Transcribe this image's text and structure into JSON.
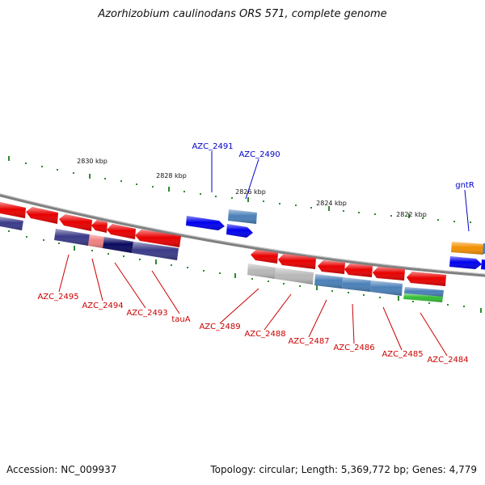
{
  "title": "Azorhizobium caulinodans ORS 571, complete genome",
  "footer": {
    "accession": "Accession: NC_009937",
    "summary": "Topology: circular; Length: 5,369,772 bp; Genes: 4,779"
  },
  "colors": {
    "forward_label": "#0000cc",
    "reverse_label": "#cc0000",
    "backbone": "#8a8a8a",
    "ticks": "#2e8b2e",
    "red": "#e80000",
    "blue": "#0000ee",
    "steelblue": "#4a80b8",
    "indigo": "#3a3a88",
    "navy": "#0a0a60",
    "pink": "#f08080",
    "gray": "#b8b8b8",
    "orange": "#f29000",
    "green": "#33bb33"
  },
  "scale_labels": [
    "2830 kbp",
    "2828 kbp",
    "2826 kbp",
    "2824 kbp",
    "2822 kbp"
  ],
  "forward_gene_labels": [
    "AZC_2491",
    "AZC_2490",
    "gntR"
  ],
  "reverse_gene_labels": [
    "AZC_2495",
    "AZC_2494",
    "AZC_2493",
    "tauA",
    "AZC_2489",
    "AZC_2488",
    "AZC_2487",
    "AZC_2486",
    "AZC_2485",
    "AZC_2484"
  ]
}
